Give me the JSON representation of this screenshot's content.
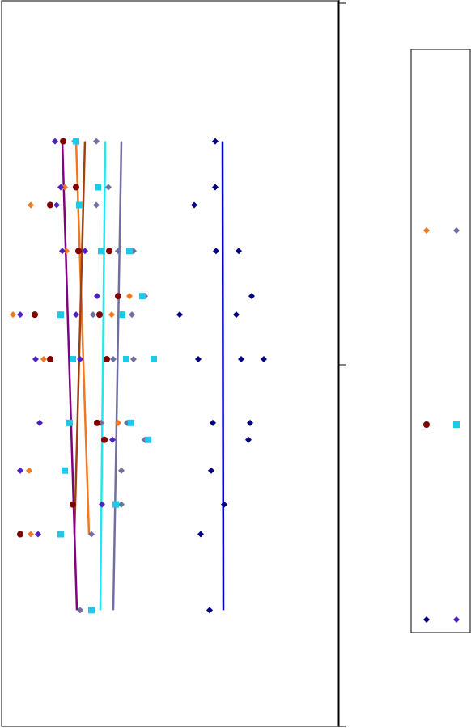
{
  "chart_data": {
    "type": "scatter",
    "xlim": [
      2,
      418
    ],
    "ylim": [
      2,
      900
    ],
    "yticks": [
      2,
      450,
      898
    ],
    "legend": "right",
    "series": [
      {
        "color": "#f07820",
        "marker": "diamond",
        "trend_color": "#f07820",
        "x": [
          92,
          80,
          38,
          82,
          160,
          16,
          138,
          54,
          146,
          36,
          38
        ],
        "y": [
          727,
          670,
          648,
          591,
          535,
          512,
          512,
          457,
          378,
          319,
          240
        ],
        "trend_x": [
          94,
          110
        ],
        "trend_y": [
          727,
          240
        ]
      },
      {
        "color": "#7070a0",
        "marker": "diamond",
        "trend_color": "#7070a0",
        "x": [
          119,
          134,
          119,
          146,
          165,
          179,
          115,
          163,
          140,
          165,
          125,
          157,
          179,
          150,
          150,
          113,
          99
        ],
        "y": [
          727,
          670,
          648,
          591,
          591,
          535,
          512,
          512,
          457,
          457,
          378,
          378,
          357,
          319,
          277,
          240,
          146
        ],
        "trend_x": [
          150,
          140
        ],
        "trend_y": [
          727,
          146
        ]
      },
      {
        "color": "#800000",
        "marker": "circle",
        "trend_color": "#a04010",
        "x": [
          78,
          94,
          62,
          97,
          135,
          146,
          43,
          123,
          62,
          132,
          120,
          129,
          90,
          25
        ],
        "y": [
          727,
          670,
          648,
          591,
          591,
          535,
          512,
          512,
          457,
          457,
          378,
          357,
          277,
          240
        ],
        "trend_x": [
          105,
          92
        ],
        "trend_y": [
          727,
          240
        ]
      },
      {
        "color": "#20c8e8",
        "marker": "square",
        "trend_color": "#20e8f0",
        "x": [
          94,
          121,
          98,
          125,
          160,
          176,
          75,
          151,
          90,
          156,
          190,
          86,
          162,
          183,
          80,
          143,
          75,
          113
        ],
        "y": [
          727,
          670,
          648,
          591,
          591,
          535,
          512,
          512,
          457,
          457,
          457,
          378,
          378,
          357,
          319,
          277,
          240,
          146
        ],
        "trend_x": [
          130,
          124
        ],
        "trend_y": [
          727,
          146
        ]
      },
      {
        "color": "#000080",
        "marker": "diamond",
        "trend_color": "#0000c8",
        "x": [
          266,
          266,
          240,
          267,
          295,
          311,
          222,
          292,
          245,
          298,
          326,
          263,
          309,
          307,
          261,
          277,
          248,
          259
        ],
        "y": [
          727,
          670,
          648,
          591,
          591,
          535,
          512,
          512,
          457,
          457,
          457,
          378,
          378,
          357,
          319,
          277,
          240,
          146
        ],
        "trend_x": [
          275,
          276
        ],
        "trend_y": [
          727,
          146
        ]
      },
      {
        "color": "#5020c0",
        "marker": "diamond",
        "trend_color": "#800080",
        "x": [
          68,
          75,
          70,
          77,
          105,
          120,
          25,
          94,
          44,
          99,
          49,
          139,
          25,
          126,
          47
        ],
        "y": [
          727,
          670,
          648,
          591,
          591,
          535,
          512,
          512,
          457,
          457,
          378,
          357,
          319,
          277,
          240
        ],
        "trend_x": [
          77,
          95
        ],
        "trend_y": [
          727,
          146
        ]
      }
    ]
  }
}
